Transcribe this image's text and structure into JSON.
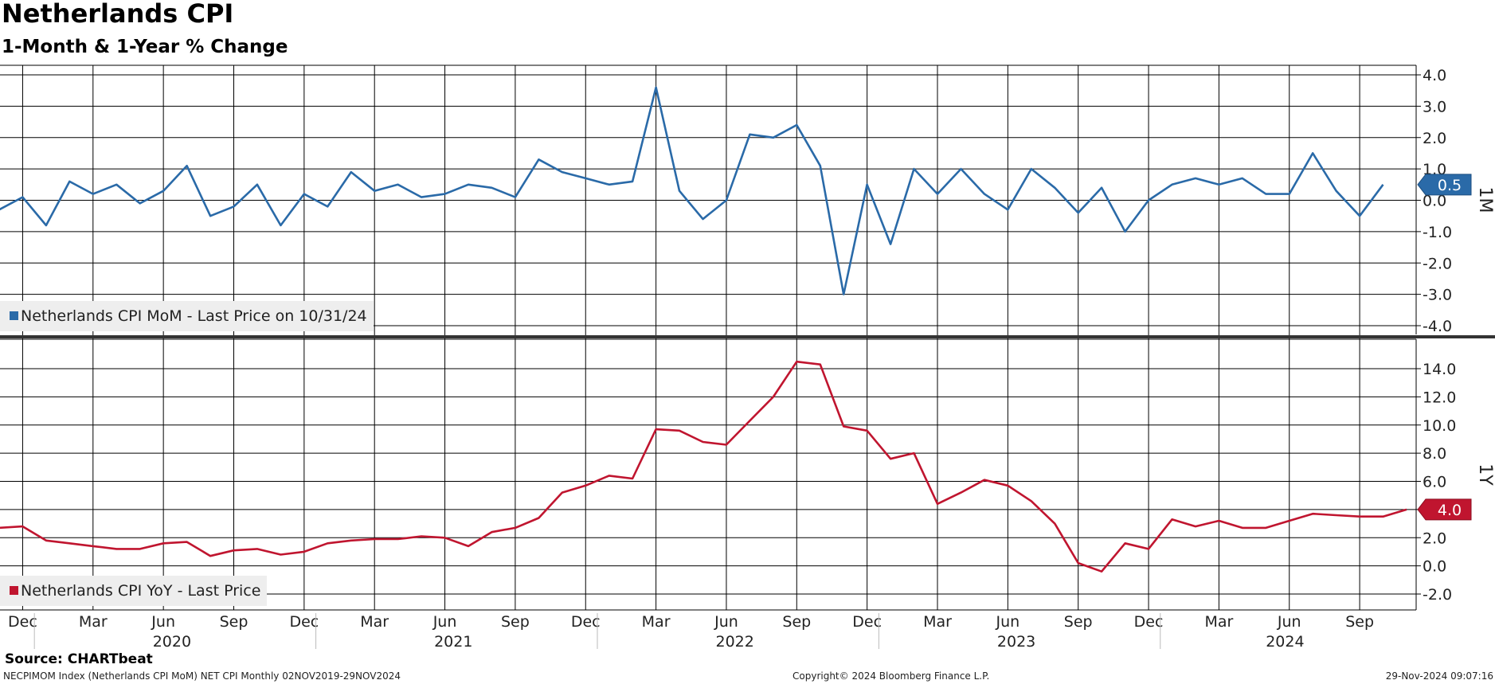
{
  "header": {
    "title": "Netherlands CPI",
    "subtitle": "1-Month & 1-Year % Change"
  },
  "footer": {
    "source": "Source: CHARTbeat",
    "ticker_info": "NECPIMOM Index (Netherlands CPI MoM) NET CPI  Monthly 02NOV2019-29NOV2024",
    "copyright": "Copyright© 2024 Bloomberg Finance L.P.",
    "timestamp": "29-Nov-2024 09:07:16"
  },
  "colors": {
    "mom": "#2a6aa8",
    "yoy": "#c0152f",
    "grid": "#000000",
    "background": "#ffffff"
  },
  "chart_data": [
    {
      "type": "line",
      "panel": "top",
      "axis_label": "1M",
      "legend": "Netherlands CPI MoM - Last Price on 10/31/24",
      "last_value_label": "0.5",
      "ylim": [
        -4.3,
        4.3
      ],
      "yticks": [
        "4.0",
        "3.0",
        "2.0",
        "1.0",
        "0.0",
        "-1.0",
        "-2.0",
        "-3.0",
        "-4.0"
      ],
      "ytick_values": [
        4,
        3,
        2,
        1,
        0,
        -1,
        -2,
        -3,
        -4
      ],
      "x": [
        "2019-11",
        "2019-12",
        "2020-01",
        "2020-02",
        "2020-03",
        "2020-04",
        "2020-05",
        "2020-06",
        "2020-07",
        "2020-08",
        "2020-09",
        "2020-10",
        "2020-11",
        "2020-12",
        "2021-01",
        "2021-02",
        "2021-03",
        "2021-04",
        "2021-05",
        "2021-06",
        "2021-07",
        "2021-08",
        "2021-09",
        "2021-10",
        "2021-11",
        "2021-12",
        "2022-01",
        "2022-02",
        "2022-03",
        "2022-04",
        "2022-05",
        "2022-06",
        "2022-07",
        "2022-08",
        "2022-09",
        "2022-10",
        "2022-11",
        "2022-12",
        "2023-01",
        "2023-02",
        "2023-03",
        "2023-04",
        "2023-05",
        "2023-06",
        "2023-07",
        "2023-08",
        "2023-09",
        "2023-10",
        "2023-11",
        "2023-12",
        "2024-01",
        "2024-02",
        "2024-03",
        "2024-04",
        "2024-05",
        "2024-06",
        "2024-07",
        "2024-08",
        "2024-09",
        "2024-10"
      ],
      "values": [
        -0.3,
        0.1,
        -0.8,
        0.6,
        0.2,
        0.5,
        -0.1,
        0.3,
        1.1,
        -0.5,
        -0.2,
        0.5,
        -0.8,
        0.2,
        -0.2,
        0.9,
        0.3,
        0.5,
        0.1,
        0.2,
        0.5,
        0.4,
        0.1,
        1.3,
        0.9,
        0.7,
        0.5,
        0.6,
        3.6,
        0.3,
        -0.6,
        0.0,
        2.1,
        2.0,
        2.4,
        1.1,
        -3.0,
        0.5,
        -1.4,
        1.0,
        0.2,
        1.0,
        0.2,
        -0.3,
        1.0,
        0.4,
        -0.4,
        0.4,
        -1.0,
        0.0,
        0.5,
        0.7,
        0.5,
        0.7,
        0.2,
        0.2,
        1.5,
        0.3,
        -0.5,
        0.5
      ]
    },
    {
      "type": "line",
      "panel": "bottom",
      "axis_label": "1Y",
      "legend": "Netherlands CPI YoY - Last Price",
      "last_value_label": "4.0",
      "ylim": [
        -2.9,
        15.8
      ],
      "yticks": [
        "14.0",
        "12.0",
        "10.0",
        "8.0",
        "6.0",
        "4.0",
        "2.0",
        "0.0",
        "-2.0"
      ],
      "ytick_values": [
        14,
        12,
        10,
        8,
        6,
        4,
        2,
        0,
        -2
      ],
      "x": [
        "2019-11",
        "2019-12",
        "2020-01",
        "2020-02",
        "2020-03",
        "2020-04",
        "2020-05",
        "2020-06",
        "2020-07",
        "2020-08",
        "2020-09",
        "2020-10",
        "2020-11",
        "2020-12",
        "2021-01",
        "2021-02",
        "2021-03",
        "2021-04",
        "2021-05",
        "2021-06",
        "2021-07",
        "2021-08",
        "2021-09",
        "2021-10",
        "2021-11",
        "2021-12",
        "2022-01",
        "2022-02",
        "2022-03",
        "2022-04",
        "2022-05",
        "2022-06",
        "2022-07",
        "2022-08",
        "2022-09",
        "2022-10",
        "2022-11",
        "2022-12",
        "2023-01",
        "2023-02",
        "2023-03",
        "2023-04",
        "2023-05",
        "2023-06",
        "2023-07",
        "2023-08",
        "2023-09",
        "2023-10",
        "2023-11",
        "2023-12",
        "2024-01",
        "2024-02",
        "2024-03",
        "2024-04",
        "2024-05",
        "2024-06",
        "2024-07",
        "2024-08",
        "2024-09",
        "2024-10",
        "2024-11"
      ],
      "values": [
        2.7,
        2.8,
        1.8,
        1.6,
        1.4,
        1.2,
        1.2,
        1.6,
        1.7,
        0.7,
        1.1,
        1.2,
        0.8,
        1.0,
        1.6,
        1.8,
        1.9,
        1.9,
        2.1,
        2.0,
        1.4,
        2.4,
        2.7,
        3.4,
        5.2,
        5.7,
        6.4,
        6.2,
        9.7,
        9.6,
        8.8,
        8.6,
        10.3,
        12.0,
        14.5,
        14.3,
        9.9,
        9.6,
        7.6,
        8.0,
        4.4,
        5.2,
        6.1,
        5.7,
        4.6,
        3.0,
        0.2,
        -0.4,
        1.6,
        1.2,
        3.3,
        2.8,
        3.2,
        2.7,
        2.7,
        3.2,
        3.7,
        3.6,
        3.5,
        3.5,
        4.0
      ]
    }
  ],
  "x_axis": {
    "month_labels": [
      "Dec",
      "Mar",
      "Jun",
      "Sep",
      "Dec",
      "Mar",
      "Jun",
      "Sep",
      "Dec",
      "Mar",
      "Jun",
      "Sep",
      "Dec",
      "Mar",
      "Jun",
      "Sep",
      "Dec",
      "Mar",
      "Jun",
      "Sep"
    ],
    "month_label_dates": [
      "2019-12",
      "2020-03",
      "2020-06",
      "2020-09",
      "2020-12",
      "2021-03",
      "2021-06",
      "2021-09",
      "2021-12",
      "2022-03",
      "2022-06",
      "2022-09",
      "2022-12",
      "2023-03",
      "2023-06",
      "2023-09",
      "2023-12",
      "2024-03",
      "2024-06",
      "2024-09"
    ],
    "year_labels": [
      "2020",
      "2021",
      "2022",
      "2023",
      "2024"
    ]
  }
}
